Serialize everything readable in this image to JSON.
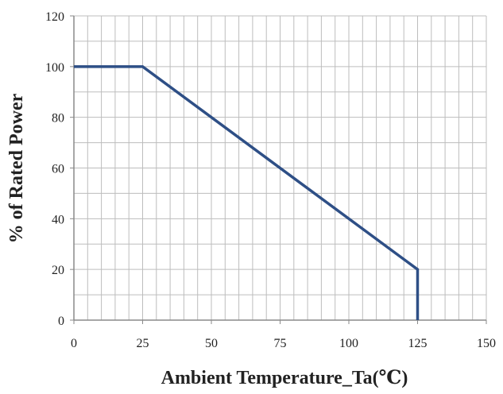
{
  "chart_data": {
    "type": "line",
    "title": "",
    "xlabel": "Ambient  Temperature_Ta(℃)",
    "ylabel": "% of Rated Power",
    "xlim": [
      0,
      150
    ],
    "ylim": [
      0,
      120
    ],
    "x_ticks": [
      0,
      25,
      50,
      75,
      100,
      125,
      150
    ],
    "y_ticks": [
      0,
      20,
      40,
      60,
      80,
      100,
      120
    ],
    "x_tick_labels": [
      "0",
      "25",
      "50",
      "75",
      "100",
      "125",
      "150"
    ],
    "y_tick_labels": [
      "0",
      "20",
      "40",
      "60",
      "80",
      "100",
      "120"
    ],
    "x_minor_step": 5,
    "y_minor_step": 10,
    "grid": true,
    "series": [
      {
        "x": [
          0,
          25,
          125,
          125
        ],
        "y": [
          100,
          100,
          20,
          0
        ],
        "color": "#2e4f86"
      }
    ]
  },
  "colors": {
    "line": "#2e4f86",
    "grid": "#bdbdbd",
    "axis": "#8a8a8a",
    "text": "#222222"
  }
}
